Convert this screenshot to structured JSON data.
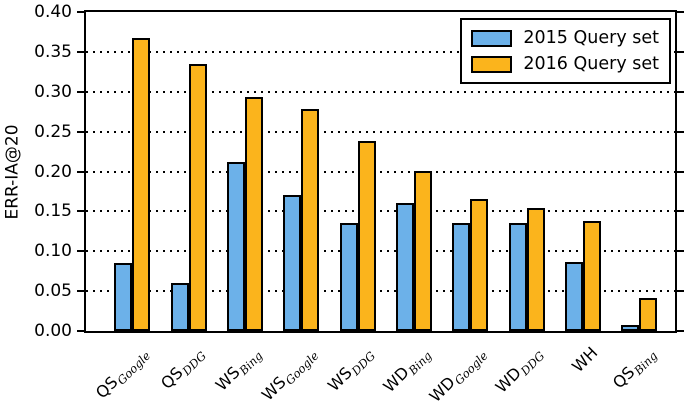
{
  "chart_data": {
    "type": "bar",
    "title": "",
    "xlabel": "",
    "ylabel": "ERR-IA@20",
    "ylim": [
      0,
      0.4
    ],
    "ytick_step": 0.05,
    "grid": "horizontal-dotted",
    "legend_position": "upper-right",
    "categories": [
      {
        "label": "QS_Google",
        "main": "QS",
        "sub": "Google"
      },
      {
        "label": "QS_DDG",
        "main": "QS",
        "sub": "DDG"
      },
      {
        "label": "WS_Bing",
        "main": "WS",
        "sub": "Bing"
      },
      {
        "label": "WS_Google",
        "main": "WS",
        "sub": "Google"
      },
      {
        "label": "WS_DDG",
        "main": "WS",
        "sub": "DDG"
      },
      {
        "label": "WD_Bing",
        "main": "WD",
        "sub": "Bing"
      },
      {
        "label": "WD_Google",
        "main": "WD",
        "sub": "Google"
      },
      {
        "label": "WD_DDG",
        "main": "WD",
        "sub": "DDG"
      },
      {
        "label": "WH",
        "main": "WH",
        "sub": ""
      },
      {
        "label": "QS_Bing",
        "main": "QS",
        "sub": "Bing"
      }
    ],
    "series": [
      {
        "name": "2015 Query set",
        "color": "#6CB1E9",
        "edge_color": "#000000",
        "values": [
          0.085,
          0.06,
          0.212,
          0.17,
          0.135,
          0.16,
          0.135,
          0.136,
          0.086,
          0.007
        ]
      },
      {
        "name": "2016 Query set",
        "color": "#FBB41C",
        "edge_color": "#000000",
        "values": [
          0.368,
          0.335,
          0.294,
          0.278,
          0.238,
          0.201,
          0.165,
          0.154,
          0.138,
          0.042
        ]
      }
    ]
  }
}
